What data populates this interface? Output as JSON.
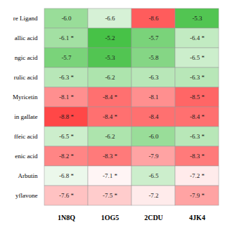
{
  "chart_data": {
    "type": "heatmap",
    "x": [
      "1N8Q",
      "1OG5",
      "2CDU",
      "4JK4"
    ],
    "y": [
      "re Ligand",
      "allic acid",
      "ngic acid",
      "rulic acid",
      "Myricetin",
      "in gallate",
      "ffeic acid",
      "enic acid",
      "Arbutin",
      "yflavone"
    ],
    "values": [
      [
        -6.0,
        -6.6,
        -8.6,
        -5.3
      ],
      [
        -6.1,
        -5.2,
        -5.7,
        -6.4
      ],
      [
        -5.7,
        -5.3,
        -5.8,
        -6.5
      ],
      [
        -6.3,
        -6.2,
        -6.3,
        -6.3
      ],
      [
        -8.1,
        -8.4,
        -8.1,
        -8.5
      ],
      [
        -8.8,
        -8.4,
        -8.4,
        -8.4
      ],
      [
        -6.5,
        -6.2,
        -6.0,
        -6.3
      ],
      [
        -8.2,
        -8.3,
        -7.9,
        -8.3
      ],
      [
        -6.8,
        -7.1,
        -6.5,
        -7.2
      ],
      [
        -7.6,
        -7.5,
        -7.2,
        -7.9
      ]
    ],
    "value_labels": [
      [
        "-6.0",
        "-6.6",
        "-8.6",
        "-5.3"
      ],
      [
        "-6.1 *",
        "-5.2",
        "-5.7",
        "-6.4 *"
      ],
      [
        "-5.7",
        "-5.3",
        "-5.8",
        "-6.5 *"
      ],
      [
        "-6.3 *",
        "-6.2",
        "-6.3",
        "-6.3 *"
      ],
      [
        "-8.1 *",
        "-8.4 *",
        "-8.1",
        "-8.5 *"
      ],
      [
        "-8.8 *",
        "-8.4 *",
        "-8.4",
        "-8.4 *"
      ],
      [
        "-6.5 *",
        "-6.2",
        "-6.0",
        "-6.3 *"
      ],
      [
        "-8.2 *",
        "-8.3 *",
        "-7.9",
        "-8.3 *"
      ],
      [
        "-6.8 *",
        "-7.1 *",
        "-6.5",
        "-7.2 *"
      ],
      [
        "-7.6 *",
        "-7.5 *",
        "-7.2",
        "-7.9 *"
      ]
    ],
    "data_labels": true,
    "color_domain": [
      -9.0,
      -5.0
    ],
    "color_scheme": [
      "#ff3333",
      "#ffffff",
      "#33bb33"
    ]
  }
}
